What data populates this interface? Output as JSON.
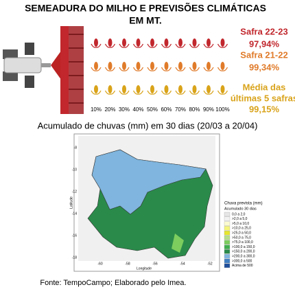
{
  "title_lines": [
    "SEMEADURA DO MILHO E PREVISÕES CLIMÁTICAS",
    "EM MT."
  ],
  "rows": [
    {
      "label_lines": [
        "Safra 22-23"
      ],
      "value": "97,94%",
      "color": "#c1272d"
    },
    {
      "label_lines": [
        "Safra 21-22"
      ],
      "value": "99,34%",
      "color": "#e07b2a"
    },
    {
      "label_lines": [
        "Média das",
        "últimas 5 safras"
      ],
      "value": "99,15%",
      "color": "#d9a31a"
    }
  ],
  "scale": [
    "10%",
    "20%",
    "30%",
    "40%",
    "50%",
    "60%",
    "70%",
    "80%",
    "90%",
    "100%"
  ],
  "map_title": "Acumulado de chuvas (mm) em 30 dias (20/03 a 20/04)",
  "map": {
    "x_label": "Longitude",
    "y_label": "Latitude",
    "xticks": [
      "-60",
      "-58",
      "-56",
      "-54",
      "-52"
    ],
    "yticks": [
      "-8",
      "-10",
      "-12",
      "-14",
      "-16",
      "-18"
    ],
    "legend": {
      "title": "Chuva prevista (mm)",
      "subtitle": "Acumulado 30 dias",
      "items": [
        {
          "label": "0,0 a 2,0",
          "color": "#e6e6e6"
        },
        {
          "label": ">2,0 a 5,0",
          "color": "#f2f2f2"
        },
        {
          "label": ">5,0 a 10,0",
          "color": "#fbfbd0"
        },
        {
          "label": ">10,0 a 25,0",
          "color": "#f5f57a"
        },
        {
          "label": ">25,0 a 50,0",
          "color": "#e6e62e"
        },
        {
          "label": ">50,0 a 75,0",
          "color": "#b7e08a"
        },
        {
          "label": ">75,0 a 100,0",
          "color": "#7ccd5e"
        },
        {
          "label": ">100,0 a 150,0",
          "color": "#3fae4e"
        },
        {
          "label": ">150,0 a 200,0",
          "color": "#2a8a4a"
        },
        {
          "label": ">200,0 a 300,0",
          "color": "#7fb5de"
        },
        {
          "label": ">300,0 a 500",
          "color": "#3f7fc4"
        },
        {
          "label": "Acima de 500",
          "color": "#1f4f9a"
        }
      ]
    }
  },
  "source": "Fonte: TempoCampo; Elaborado pelo Imea."
}
